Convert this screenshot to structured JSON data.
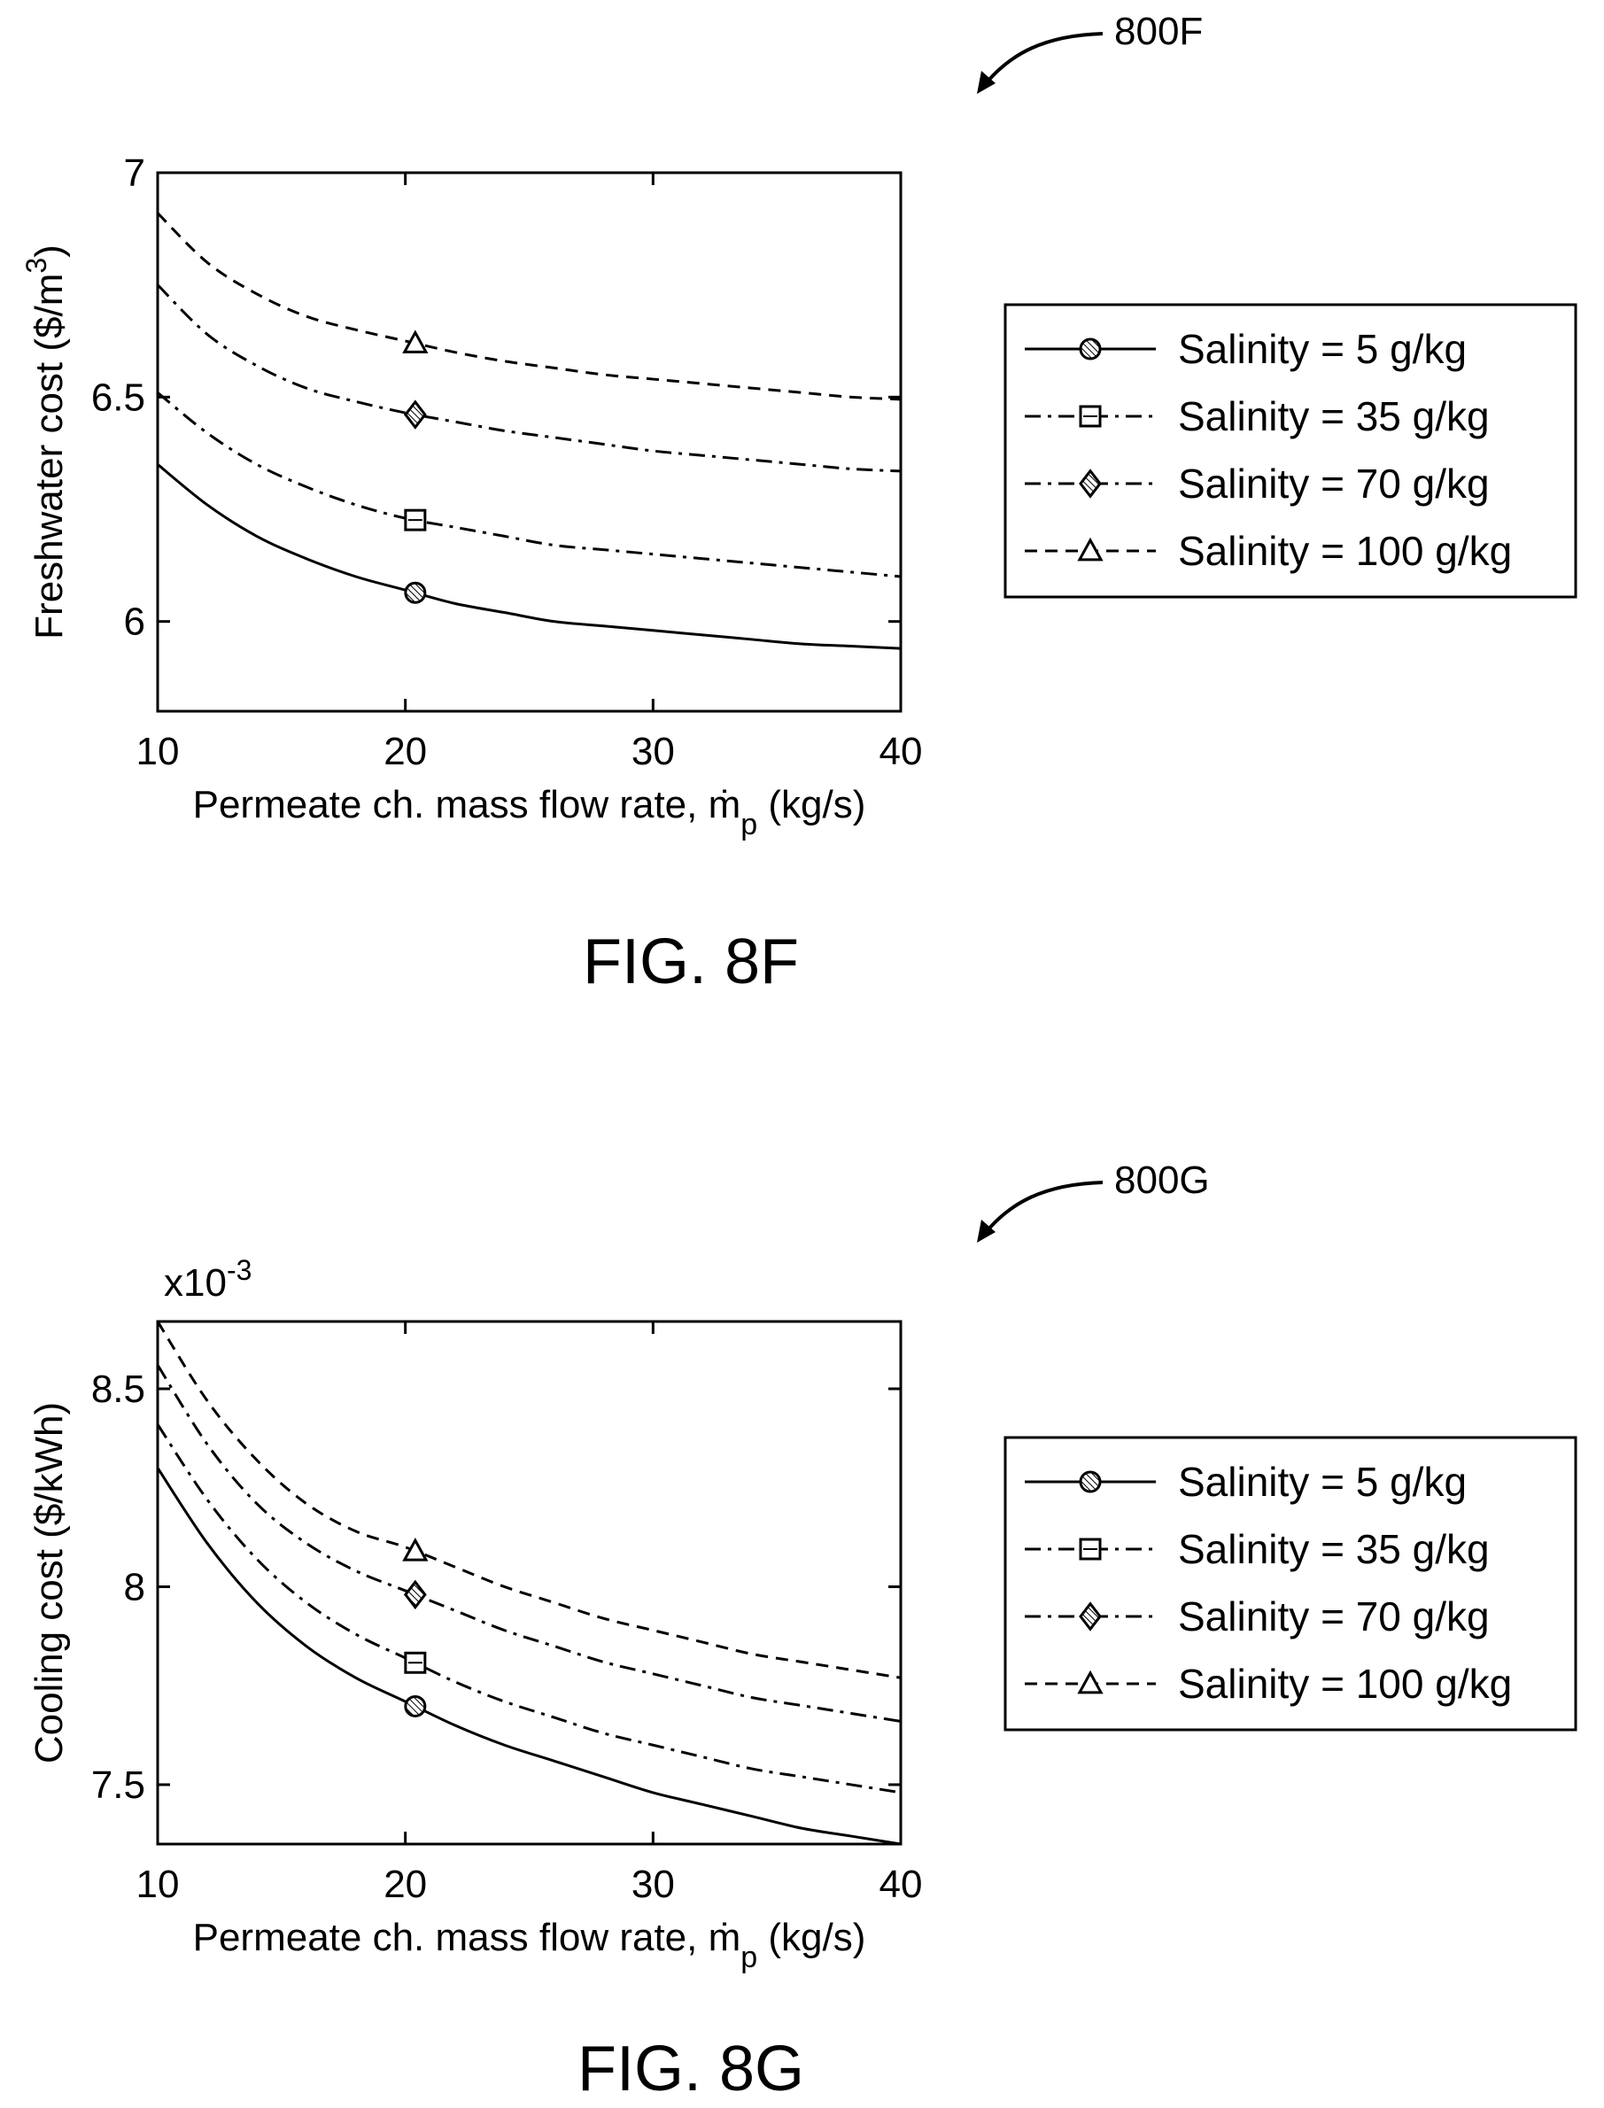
{
  "figures": [
    {
      "ref_label": "800F",
      "caption": "FIG. 8F"
    },
    {
      "ref_label": "800G",
      "caption": "FIG. 8G"
    }
  ],
  "chart_data": [
    {
      "type": "line",
      "xlabel_main": "Permeate ch. mass flow rate, ṁ",
      "xlabel_sub": "p",
      "xlabel_tail": " (kg/s)",
      "ylabel_main": "Freshwater cost ($/m",
      "ylabel_sup": "3",
      "ylabel_tail": ")",
      "xlim": [
        10,
        40
      ],
      "ylim": [
        5.8,
        7.0
      ],
      "xticks": [
        10,
        20,
        30,
        40
      ],
      "xtick_labels": [
        "10",
        "20",
        "30",
        "40"
      ],
      "yticks": [
        6.0,
        6.5,
        7.0
      ],
      "ytick_labels": [
        "6",
        "6.5",
        "7"
      ],
      "grid": false,
      "legend_position": "right-outside",
      "marker_x": 20.4,
      "x": [
        10,
        12,
        14,
        16,
        18,
        20,
        22,
        24,
        26,
        28,
        30,
        32,
        34,
        36,
        38,
        40
      ],
      "series": [
        {
          "name": "Salinity = 5 g/kg",
          "line_style": "solid",
          "marker": "circle-hatched",
          "values": [
            6.35,
            6.26,
            6.19,
            6.14,
            6.1,
            6.07,
            6.04,
            6.02,
            6.0,
            5.99,
            5.98,
            5.97,
            5.96,
            5.95,
            5.945,
            5.94
          ]
        },
        {
          "name": "Salinity = 35 g/kg",
          "line_style": "dashdot",
          "marker": "square",
          "values": [
            6.51,
            6.42,
            6.35,
            6.3,
            6.26,
            6.23,
            6.21,
            6.19,
            6.17,
            6.16,
            6.15,
            6.14,
            6.13,
            6.12,
            6.11,
            6.1
          ]
        },
        {
          "name": "Salinity = 70 g/kg",
          "line_style": "dashdot",
          "marker": "diamond",
          "values": [
            6.75,
            6.64,
            6.57,
            6.52,
            6.49,
            6.465,
            6.445,
            6.425,
            6.41,
            6.395,
            6.38,
            6.37,
            6.36,
            6.35,
            6.34,
            6.335
          ]
        },
        {
          "name": "Salinity = 100 g/kg",
          "line_style": "dashed",
          "marker": "triangle",
          "values": [
            6.91,
            6.8,
            6.73,
            6.68,
            6.65,
            6.625,
            6.6,
            6.58,
            6.565,
            6.55,
            6.54,
            6.53,
            6.52,
            6.51,
            6.5,
            6.495
          ]
        }
      ]
    },
    {
      "type": "line",
      "xlabel_main": "Permeate ch. mass flow rate, ṁ",
      "xlabel_sub": "p",
      "xlabel_tail": " (kg/s)",
      "ylabel_main": "Cooling cost ($/kWh)",
      "ylabel_sup": "",
      "ylabel_tail": "",
      "scale_factor_base": "x10",
      "scale_factor_exp": "-3",
      "xlim": [
        10,
        40
      ],
      "ylim": [
        7.35,
        8.67
      ],
      "xticks": [
        10,
        20,
        30,
        40
      ],
      "xtick_labels": [
        "10",
        "20",
        "30",
        "40"
      ],
      "yticks": [
        7.5,
        8.0,
        8.5
      ],
      "ytick_labels": [
        "7.5",
        "8",
        "8.5"
      ],
      "grid": false,
      "legend_position": "right-outside",
      "marker_x": 20.4,
      "x": [
        10,
        12,
        14,
        16,
        18,
        20,
        22,
        24,
        26,
        28,
        30,
        32,
        34,
        36,
        38,
        40
      ],
      "series": [
        {
          "name": "Salinity = 5 g/kg",
          "line_style": "solid",
          "marker": "circle-hatched",
          "values": [
            8.3,
            8.11,
            7.96,
            7.85,
            7.77,
            7.71,
            7.65,
            7.6,
            7.56,
            7.52,
            7.48,
            7.45,
            7.42,
            7.39,
            7.37,
            7.35
          ]
        },
        {
          "name": "Salinity = 35 g/kg",
          "line_style": "dashdot",
          "marker": "square",
          "values": [
            8.41,
            8.22,
            8.07,
            7.96,
            7.88,
            7.82,
            7.76,
            7.71,
            7.67,
            7.63,
            7.6,
            7.57,
            7.54,
            7.52,
            7.5,
            7.48
          ]
        },
        {
          "name": "Salinity = 70 g/kg",
          "line_style": "dashdot",
          "marker": "diamond",
          "values": [
            8.56,
            8.36,
            8.21,
            8.11,
            8.04,
            7.99,
            7.94,
            7.89,
            7.85,
            7.81,
            7.78,
            7.75,
            7.72,
            7.7,
            7.68,
            7.66
          ]
        },
        {
          "name": "Salinity = 100 g/kg",
          "line_style": "dashed",
          "marker": "triangle",
          "values": [
            8.67,
            8.47,
            8.32,
            8.21,
            8.14,
            8.1,
            8.05,
            8.0,
            7.96,
            7.92,
            7.89,
            7.86,
            7.83,
            7.81,
            7.79,
            7.77
          ]
        }
      ]
    }
  ]
}
